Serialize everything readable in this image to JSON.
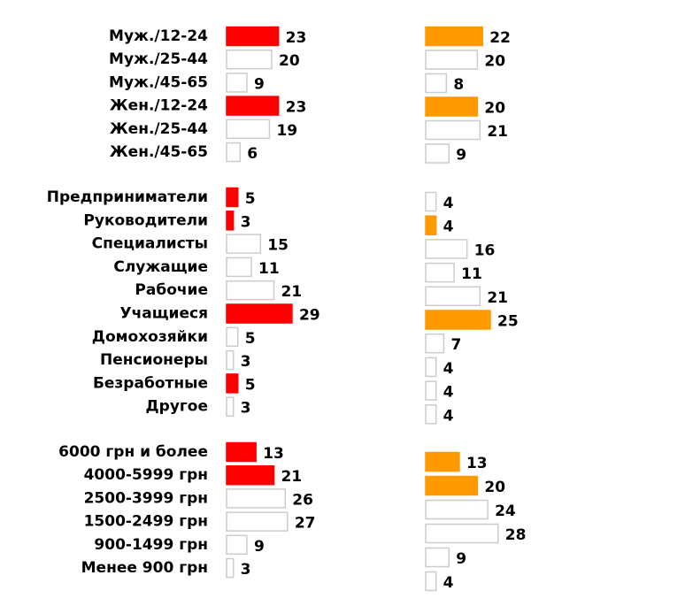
{
  "chart_data": [
    {
      "type": "bar",
      "orientation": "horizontal",
      "categories": [
        "Муж./12-24",
        "Муж./25-44",
        "Муж./45-65",
        "Жен./12-24",
        "Жен./25-44",
        "Жен./45-65"
      ],
      "series": [
        {
          "values": [
            23,
            20,
            9,
            23,
            19,
            6
          ],
          "colors": [
            "#ff0000",
            "#ffffff",
            "#ffffff",
            "#ff0000",
            "#ffffff",
            "#ffffff"
          ]
        },
        {
          "values": [
            22,
            20,
            8,
            20,
            21,
            9
          ],
          "colors": [
            "#ff9900",
            "#ffffff",
            "#ffffff",
            "#ff9900",
            "#ffffff",
            "#ffffff"
          ]
        }
      ]
    },
    {
      "type": "bar",
      "orientation": "horizontal",
      "categories": [
        "Предприниматели",
        "Руководители",
        "Специалисты",
        "Служащие",
        "Рабочие",
        "Учащиеся",
        "Домохозяйки",
        "Пенсионеры",
        "Безработные",
        "Другое"
      ],
      "series": [
        {
          "values": [
            5,
            3,
            15,
            11,
            21,
            29,
            5,
            3,
            5,
            3
          ],
          "colors": [
            "#ff0000",
            "#ff0000",
            "#ffffff",
            "#ffffff",
            "#ffffff",
            "#ff0000",
            "#ffffff",
            "#ffffff",
            "#ff0000",
            "#ffffff"
          ]
        },
        {
          "values": [
            4,
            4,
            16,
            11,
            21,
            25,
            7,
            4,
            4,
            4
          ],
          "colors": [
            "#ffffff",
            "#ff9900",
            "#ffffff",
            "#ffffff",
            "#ffffff",
            "#ff9900",
            "#ffffff",
            "#ffffff",
            "#ffffff",
            "#ffffff"
          ]
        }
      ]
    },
    {
      "type": "bar",
      "orientation": "horizontal",
      "categories": [
        "6000 грн и более",
        "4000-5999 грн",
        "2500-3999 грн",
        "1500-2499 грн",
        "900-1499 грн",
        "Менее 900 грн"
      ],
      "series": [
        {
          "values": [
            13,
            21,
            26,
            27,
            9,
            3
          ],
          "colors": [
            "#ff0000",
            "#ff0000",
            "#ffffff",
            "#ffffff",
            "#ffffff",
            "#ffffff"
          ]
        },
        {
          "values": [
            13,
            20,
            24,
            28,
            9,
            4
          ],
          "colors": [
            "#ff9900",
            "#ff9900",
            "#ffffff",
            "#ffffff",
            "#ffffff",
            "#ffffff"
          ]
        }
      ]
    }
  ]
}
